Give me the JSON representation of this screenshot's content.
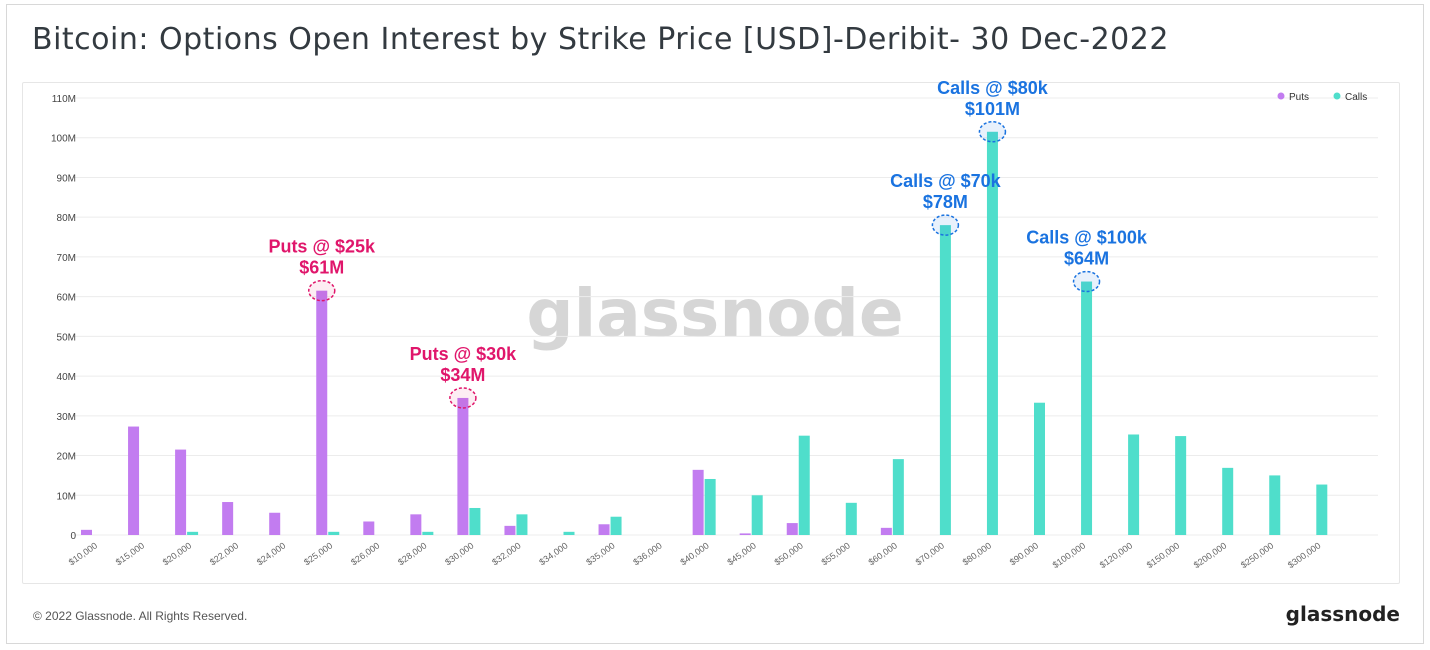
{
  "title": "Bitcoin: Options Open Interest by Strike Price [USD]-Deribit- 30 Dec-2022",
  "footer": {
    "copyright": "© 2022 Glassnode. All Rights Reserved.",
    "brand": "glassnode"
  },
  "watermark": "glassnode",
  "colors": {
    "puts": "#c27cf0",
    "calls": "#4fdecb",
    "puts_annotation": "#e0166b",
    "calls_annotation": "#1a73e0",
    "grid": "#ececec",
    "axis_text": "#444444"
  },
  "chart_data": {
    "type": "bar",
    "title": "Bitcoin: Options Open Interest by Strike Price [USD]-Deribit- 30 Dec-2022",
    "xlabel": "",
    "ylabel": "",
    "ylim": [
      0,
      110000000
    ],
    "y_ticks": [
      {
        "value": 0,
        "label": "0"
      },
      {
        "value": 10000000,
        "label": "10M"
      },
      {
        "value": 20000000,
        "label": "20M"
      },
      {
        "value": 30000000,
        "label": "30M"
      },
      {
        "value": 40000000,
        "label": "40M"
      },
      {
        "value": 50000000,
        "label": "50M"
      },
      {
        "value": 60000000,
        "label": "60M"
      },
      {
        "value": 70000000,
        "label": "70M"
      },
      {
        "value": 80000000,
        "label": "80M"
      },
      {
        "value": 90000000,
        "label": "90M"
      },
      {
        "value": 100000000,
        "label": "100M"
      },
      {
        "value": 110000000,
        "label": "110M"
      }
    ],
    "grid": true,
    "legend_position": "top-right",
    "categories": [
      "$10,000",
      "$15,000",
      "$20,000",
      "$22,000",
      "$24,000",
      "$25,000",
      "$26,000",
      "$28,000",
      "$30,000",
      "$32,000",
      "$34,000",
      "$35,000",
      "$36,000",
      "$40,000",
      "$45,000",
      "$50,000",
      "$55,000",
      "$60,000",
      "$70,000",
      "$80,000",
      "$90,000",
      "$100,000",
      "$120,000",
      "$150,000",
      "$200,000",
      "$250,000",
      "$300,000"
    ],
    "series": [
      {
        "name": "Puts",
        "values": [
          1300000,
          27300000,
          21500000,
          8300000,
          5600000,
          61500000,
          3400000,
          5200000,
          34500000,
          2300000,
          0,
          2700000,
          0,
          16400000,
          400000,
          3000000,
          0,
          1800000,
          0,
          0,
          0,
          0,
          0,
          0,
          0,
          0,
          0
        ]
      },
      {
        "name": "Calls",
        "values": [
          0,
          0,
          800000,
          0,
          0,
          800000,
          0,
          800000,
          6800000,
          5200000,
          800000,
          4600000,
          0,
          14100000,
          10000000,
          25000000,
          8100000,
          19100000,
          78000000,
          101500000,
          33300000,
          63800000,
          25300000,
          24900000,
          16900000,
          15000000,
          12700000
        ]
      }
    ],
    "annotations": [
      {
        "series": "Puts",
        "category": "$25,000",
        "line1": "Puts @ $25k",
        "line2": "$61M"
      },
      {
        "series": "Puts",
        "category": "$30,000",
        "line1": "Puts @ $30k",
        "line2": "$34M"
      },
      {
        "series": "Calls",
        "category": "$70,000",
        "line1": "Calls @ $70k",
        "line2": "$78M"
      },
      {
        "series": "Calls",
        "category": "$80,000",
        "line1": "Calls @ $80k",
        "line2": "$101M"
      },
      {
        "series": "Calls",
        "category": "$100,000",
        "line1": "Calls @ $100k",
        "line2": "$64M"
      }
    ]
  }
}
